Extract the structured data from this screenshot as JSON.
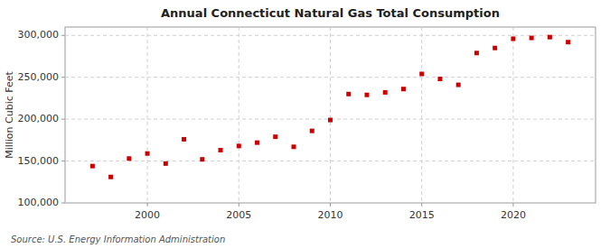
{
  "chart_data": {
    "type": "scatter",
    "title": "Annual Connecticut Natural Gas Total Consumption",
    "ylabel": "Million Cubic Feet",
    "annotation": "Source: U.S. Energy Information Administration",
    "color": "#cc0000",
    "marker": "square",
    "grid": true,
    "x": [
      1997,
      1998,
      1999,
      2000,
      2001,
      2002,
      2003,
      2004,
      2005,
      2006,
      2007,
      2008,
      2009,
      2010,
      2011,
      2012,
      2013,
      2014,
      2015,
      2016,
      2017,
      2018,
      2019,
      2020,
      2021,
      2022,
      2023
    ],
    "values": [
      144000,
      131000,
      153000,
      159000,
      147000,
      176000,
      152000,
      163000,
      168000,
      172000,
      179000,
      167000,
      186000,
      199000,
      230000,
      229000,
      232000,
      236000,
      254000,
      248000,
      241000,
      279000,
      285000,
      296000,
      297000,
      298000,
      292000
    ],
    "xlim": [
      1995.5,
      2024.5
    ],
    "xticks": [
      2000,
      2005,
      2010,
      2015,
      2020
    ],
    "ylim": [
      100000,
      310000
    ],
    "yticks": [
      {
        "value": 100000,
        "label": "100,000"
      },
      {
        "value": 150000,
        "label": "150,000"
      },
      {
        "value": 200000,
        "label": "200,000"
      },
      {
        "value": 250000,
        "label": "250,000"
      },
      {
        "value": 300000,
        "label": "300,000"
      }
    ]
  }
}
